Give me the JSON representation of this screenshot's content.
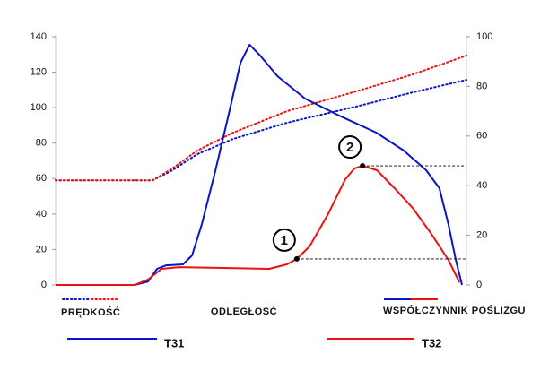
{
  "chart_data": {
    "type": "line",
    "x_label": "ODLEGŁOŚĆ",
    "xlim": [
      0,
      100
    ],
    "ylim": [
      0,
      140
    ],
    "yticks": [
      0,
      20,
      40,
      60,
      80,
      100,
      120,
      140
    ],
    "y2lim": [
      0,
      100
    ],
    "y2ticks": [
      0,
      20,
      40,
      60,
      80,
      100
    ],
    "legend": {
      "styles": [
        {
          "label": "PRĘDKOŚĆ",
          "dash": "dotted"
        },
        {
          "label": "WSPÓŁCZYNNIK POŚLIZGU",
          "dash": "solid"
        }
      ],
      "vehicles": [
        {
          "label": "T31",
          "color": "#0a14c8"
        },
        {
          "label": "T32",
          "color": "#ee1010"
        }
      ]
    },
    "series": [
      {
        "color": "#0a14c8",
        "dash": "dotted",
        "axis": "y",
        "x": [
          0,
          23.6,
          28.4,
          34.5,
          43.2,
          56.3,
          73.8,
          86.9,
          100
        ],
        "values": [
          59,
          59,
          64.7,
          73.8,
          82.4,
          91.5,
          101,
          108.6,
          115.7
        ]
      },
      {
        "color": "#ee1010",
        "dash": "dotted",
        "axis": "y",
        "x": [
          0,
          23.6,
          28.4,
          34.5,
          43.2,
          56.3,
          73.8,
          86.9,
          100
        ],
        "values": [
          59,
          59,
          65.7,
          75.8,
          85.9,
          98,
          109.6,
          118.7,
          129.4
        ]
      },
      {
        "color": "#0a14c8",
        "dash": "solid",
        "axis": "y2",
        "x": [
          0,
          19.2,
          22.5,
          24.7,
          26.9,
          31,
          33.2,
          35.6,
          38.9,
          42,
          45,
          47.2,
          49.8,
          54,
          60.7,
          69.4,
          78,
          84.7,
          90.2,
          93.4,
          95.6,
          97.4,
          98.9
        ],
        "values": [
          0,
          0,
          1.4,
          6.5,
          7.9,
          8.3,
          11.9,
          24.5,
          46.2,
          67.9,
          89.5,
          96.8,
          92.4,
          84.1,
          75.1,
          67.9,
          61.4,
          54.2,
          46.2,
          39,
          24.5,
          10.1,
          0
        ]
      },
      {
        "color": "#ee1010",
        "dash": "solid",
        "axis": "y2",
        "x": [
          0,
          19.2,
          22.5,
          25.8,
          30.1,
          52,
          56.3,
          58.7,
          61.8,
          66.2,
          70.5,
          72.7,
          74.7,
          78.2,
          82.5,
          86.9,
          91.3,
          95.6,
          98.3
        ],
        "values": [
          0,
          0,
          2.2,
          6.5,
          7.2,
          6.5,
          8.3,
          10.5,
          15.5,
          28.2,
          42.6,
          46.9,
          48,
          46.2,
          39,
          31,
          20.9,
          10.1,
          1
        ]
      }
    ],
    "annotations": [
      {
        "label": "1",
        "x": 58.7,
        "y": 10.5,
        "axis": "y2"
      },
      {
        "label": "2",
        "x": 74.7,
        "y": 48,
        "axis": "y2"
      }
    ]
  }
}
